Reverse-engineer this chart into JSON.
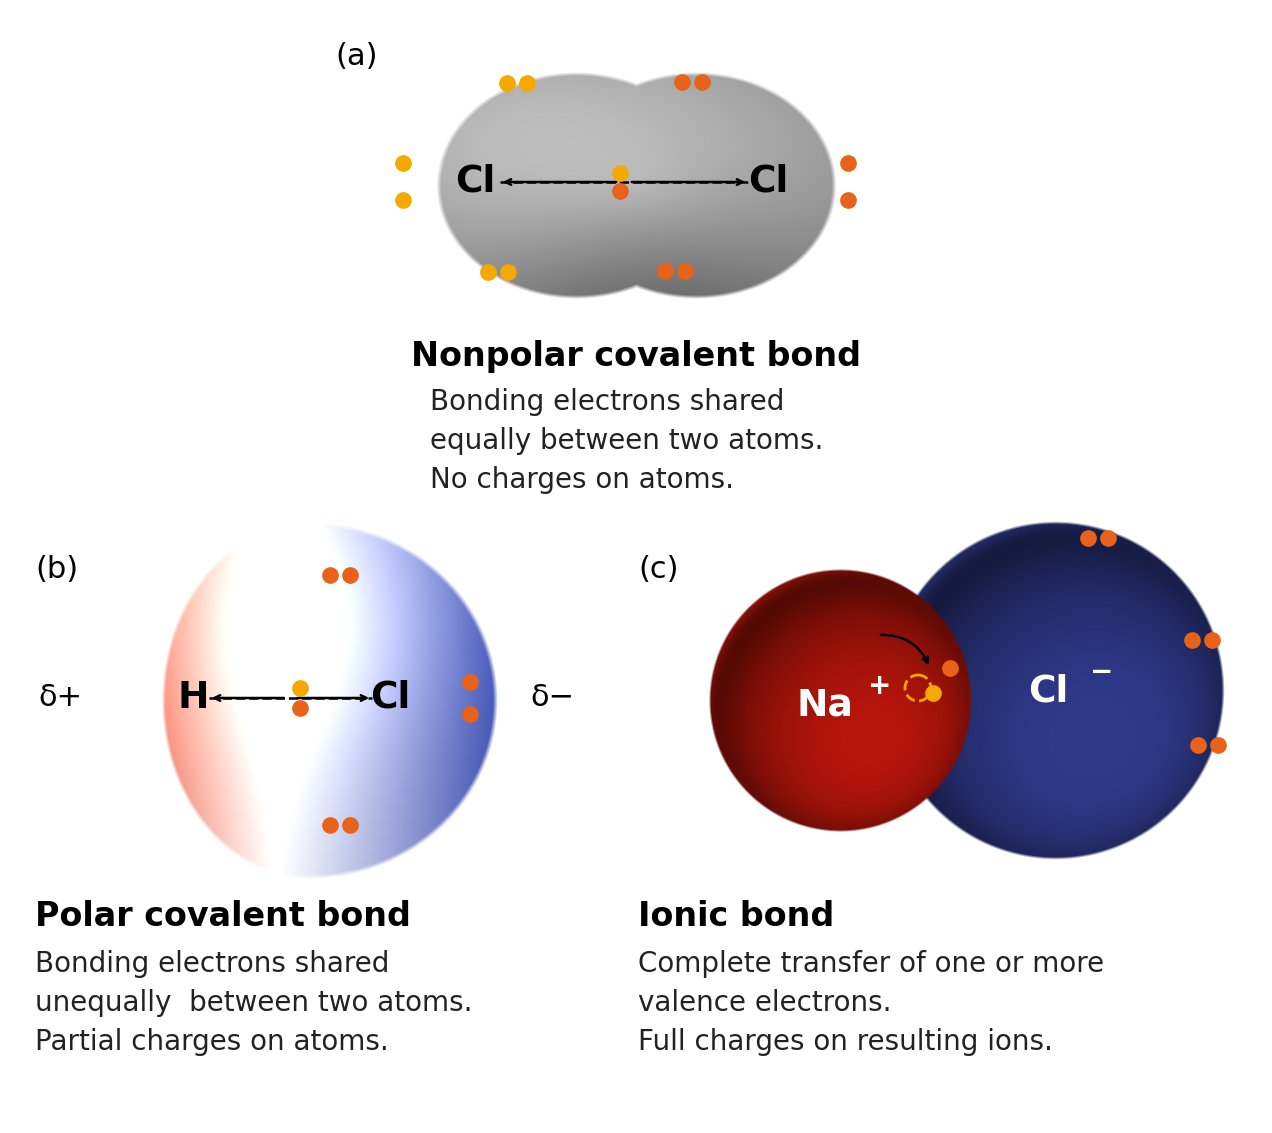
{
  "bg_color": "#ffffff",
  "orange_dot_color": "#E8621A",
  "yellow_dot_color": "#F5A800",
  "label_a": "(a)",
  "label_b": "(b)",
  "label_c": "(c)",
  "title_a": "Nonpolar covalent bond",
  "desc_a": "Bonding electrons shared\nequally between two atoms.\nNo charges on atoms.",
  "title_b": "Polar covalent bond",
  "desc_b": "Bonding electrons shared\nunequally  between two atoms.\nPartial charges on atoms.",
  "title_c": "Ionic bond",
  "desc_c": "Complete transfer of one or more\nvalence electrons.\nFull charges on resulting ions.",
  "delta_plus": "δ+",
  "delta_minus": "δ−"
}
